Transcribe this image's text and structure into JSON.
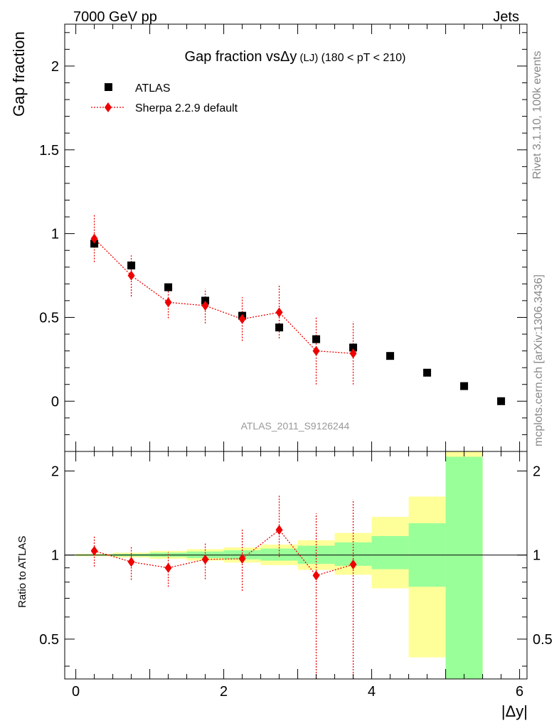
{
  "header": {
    "left": "7000 GeV pp",
    "right": "Jets"
  },
  "side_labels": {
    "rivet": "Rivet 3.1.10,  100k events",
    "mcplots": "mcplots.cern.ch [arXiv:1306.3436]"
  },
  "chart_data": [
    {
      "type": "scatter",
      "title": "Gap fraction vsΔy (LJ) (180 < pT < 210)",
      "title_parts": {
        "main": "Gap fraction vs",
        "delta": "Δy",
        "lj": " (LJ) ",
        "rest": "(180 < pT < 210)"
      },
      "ylabel": "Gap fraction",
      "watermark": "ATLAS_2011_S9126244",
      "xlim": [
        -0.15,
        6.1
      ],
      "ylim": [
        -0.3,
        2.25
      ],
      "yticks": [
        0,
        0.5,
        1,
        1.5,
        2
      ],
      "ytick_labels": [
        "0",
        "0.5",
        "1",
        "1.5",
        "2"
      ],
      "legend_position": "top-left",
      "series": [
        {
          "name": "ATLAS",
          "color": "#000000",
          "marker": "square",
          "x": [
            0.25,
            0.75,
            1.25,
            1.75,
            2.25,
            2.75,
            3.25,
            3.75,
            4.25,
            4.75,
            5.25,
            5.75
          ],
          "y": [
            0.94,
            0.81,
            0.68,
            0.6,
            0.51,
            0.44,
            0.37,
            0.32,
            0.27,
            0.17,
            0.09,
            0.0
          ]
        },
        {
          "name": "Sherpa 2.2.9 default",
          "color": "#ee0000",
          "marker": "diamond",
          "line": "dotted",
          "x": [
            0.25,
            0.75,
            1.25,
            1.75,
            2.25,
            2.75,
            3.25,
            3.75
          ],
          "y": [
            0.97,
            0.75,
            0.59,
            0.57,
            0.49,
            0.53,
            0.3,
            0.285
          ],
          "yerr_low": [
            0.14,
            0.125,
            0.095,
            0.105,
            0.13,
            0.155,
            0.2,
            0.185
          ],
          "yerr_high": [
            0.14,
            0.12,
            0.09,
            0.1,
            0.13,
            0.16,
            0.2,
            0.19
          ]
        }
      ]
    },
    {
      "type": "scatter",
      "ylabel": "Ratio to ATLAS",
      "xlabel": "|Δy|",
      "xlim": [
        -0.15,
        6.1
      ],
      "ylim": [
        0.36,
        2.35
      ],
      "log_y": true,
      "xticks": [
        0,
        2,
        4,
        6
      ],
      "xtick_labels": [
        "0",
        "2",
        "4",
        "6"
      ],
      "yticks": [
        0.5,
        1,
        2
      ],
      "ytick_labels": [
        "0.5",
        "1",
        "2"
      ],
      "bands": {
        "bin_edges": [
          0.0,
          0.5,
          1.0,
          1.5,
          2.0,
          2.5,
          3.0,
          3.5,
          4.0,
          4.5,
          5.0,
          5.5
        ],
        "yellow_low": [
          0.99,
          0.98,
          0.97,
          0.955,
          0.94,
          0.92,
          0.885,
          0.85,
          0.76,
          0.43,
          0.3
        ],
        "yellow_high": [
          1.01,
          1.02,
          1.035,
          1.05,
          1.065,
          1.09,
          1.13,
          1.2,
          1.37,
          1.62,
          2.5
        ],
        "green_low": [
          0.995,
          0.99,
          0.985,
          0.975,
          0.965,
          0.955,
          0.93,
          0.915,
          0.89,
          0.77,
          0.3
        ],
        "green_high": [
          1.005,
          1.01,
          1.02,
          1.03,
          1.04,
          1.055,
          1.08,
          1.11,
          1.17,
          1.3,
          2.25
        ],
        "yellow_color": "#ffff99",
        "green_color": "#99ff99"
      },
      "series": [
        {
          "name": "Sherpa 2.2.9 default",
          "color": "#ee0000",
          "marker": "diamond",
          "line": "dotted",
          "x": [
            0.25,
            0.75,
            1.25,
            1.75,
            2.25,
            2.75,
            3.25,
            3.75
          ],
          "y": [
            1.035,
            0.945,
            0.9,
            0.965,
            0.97,
            1.23,
            0.845,
            0.925
          ],
          "yerr_low_to": [
            0.91,
            0.815,
            0.77,
            0.82,
            0.745,
            0.985,
            0.31,
            0.3
          ],
          "yerr_high_to": [
            1.17,
            1.08,
            1.025,
            1.11,
            1.24,
            1.63,
            1.41,
            1.58
          ]
        }
      ]
    }
  ]
}
